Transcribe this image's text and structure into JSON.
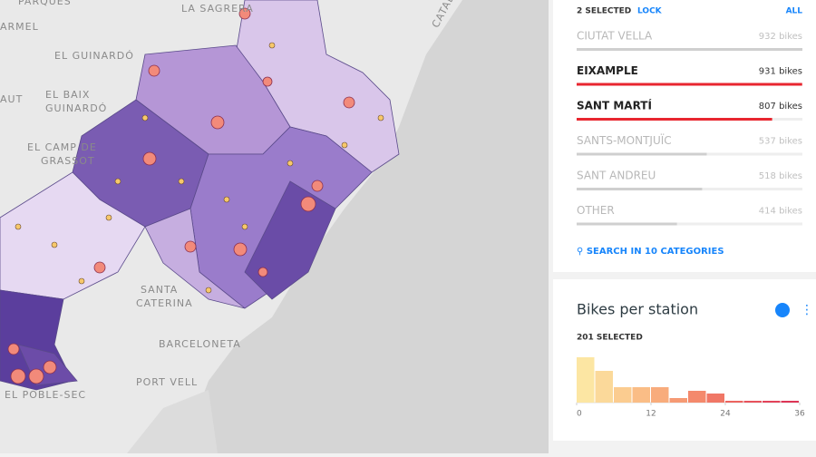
{
  "map": {
    "labels": [
      "PARQUES",
      "LA SAGRERA",
      "EL GUINARDÓ",
      "EL BAIX",
      "GUINARDÓ",
      "EL CAMP DE",
      "GRASSOT",
      "SANTA",
      "CATERINA",
      "BARCELONETA",
      "PORT VELL",
      "EL POBLE-SEC",
      "CATALUNYA",
      "ARMEL",
      "AUT"
    ]
  },
  "category_widget": {
    "selected": "2 SELECTED",
    "lock": "LOCK",
    "all": "ALL",
    "search": "SEARCH IN 10 CATEGORIES",
    "categories": [
      "CIUTAT VELLA",
      "EIXAMPLE",
      "SANT MARTÍ",
      "SANTS-MONTJUÏC",
      "SANT ANDREU",
      "OTHER"
    ],
    "values": [
      932,
      931,
      807,
      537,
      518,
      414
    ],
    "value_labels": [
      "932 bikes",
      "931 bikes",
      "807 bikes",
      "537 bikes",
      "518 bikes",
      "414 bikes"
    ],
    "selected_categories": [
      "EIXAMPLE",
      "SANT MARTÍ"
    ],
    "selected_color": "#e8262f",
    "color": "#cfcfcf"
  },
  "chart_data": {
    "type": "histogram",
    "title": "Bikes per station",
    "subtitle": "201 SELECTED",
    "bins": [
      0,
      3,
      6,
      9,
      12,
      15,
      18,
      21,
      24,
      27,
      30,
      33,
      36
    ],
    "values": [
      50,
      35,
      17,
      17,
      17,
      5,
      13,
      10,
      2,
      2,
      2,
      2
    ],
    "colors": [
      "#fce6a3",
      "#fbd99a",
      "#fbcc90",
      "#fabd86",
      "#f8ac7c",
      "#f69a74",
      "#f4896c",
      "#f07766",
      "#ec6460",
      "#e8525c",
      "#e34359",
      "#de3556"
    ],
    "xlim": [
      0,
      36
    ],
    "xticks": [
      0,
      12,
      24,
      36
    ]
  }
}
